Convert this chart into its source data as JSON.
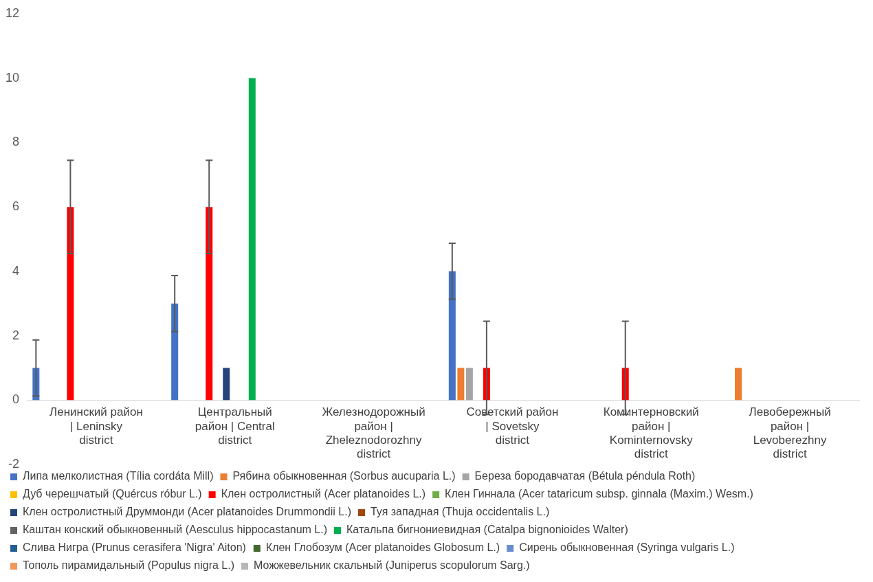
{
  "chart_data": {
    "type": "bar",
    "categories": [
      "Ленинский район | Leninsky district",
      "Центральный район | Central district",
      "Железнодорожный район | Zheleznodorozhny district",
      "Советский район | Sovetsky district",
      "Коминтерновский район | Kominternovsky district",
      "Левобережный район | Levoberezhny district"
    ],
    "series": [
      {
        "name": "Липа мелколистная (Tília cordáta Mill)",
        "color": "#4472c4",
        "values": [
          1,
          3,
          null,
          4,
          null,
          null
        ],
        "errors": [
          0.87,
          0.87,
          null,
          0.87,
          null,
          null
        ]
      },
      {
        "name": "Рябина обыкновенная (Sorbus aucuparia L.)",
        "color": "#ed7d31",
        "values": [
          null,
          null,
          null,
          1,
          null,
          1
        ]
      },
      {
        "name": "Береза бородавчатая (Bétula péndula Roth)",
        "color": "#a5a5a5",
        "values": [
          null,
          null,
          null,
          1,
          null,
          null
        ]
      },
      {
        "name": "Дуб черешчатый (Quércus róbur L.)",
        "color": "#ffc000",
        "values": [
          null,
          null,
          null,
          null,
          null,
          null
        ]
      },
      {
        "name": "Клен остролистный (Acer platanoides L.)",
        "color": "#ff0000",
        "values": [
          6,
          6,
          null,
          1,
          1,
          null
        ],
        "errors": [
          1.45,
          1.45,
          null,
          1.45,
          1.45,
          null
        ]
      },
      {
        "name": "Клен Гиннала (Acer tataricum subsp. ginnala (Maxim.) Wesm.)",
        "color": "#70ad47",
        "values": [
          null,
          null,
          null,
          null,
          null,
          null
        ]
      },
      {
        "name": "Клен остролистный Друммонди (Acer platanoides Drummondii L.)",
        "color": "#264478",
        "values": [
          null,
          1,
          null,
          null,
          null,
          null
        ]
      },
      {
        "name": "Туя западная (Thuja occidentalis L.)",
        "color": "#9e480e",
        "values": [
          null,
          null,
          null,
          null,
          null,
          null
        ]
      },
      {
        "name": "Каштан конский обыкновенный (Aesculus hippocastanum L.)",
        "color": "#636363",
        "values": [
          null,
          null,
          null,
          null,
          null,
          null
        ]
      },
      {
        "name": "Катальпа бигнониевидная (Catalpa bignonioides Walter)",
        "color": "#00b050",
        "values": [
          null,
          10,
          null,
          null,
          null,
          null
        ]
      },
      {
        "name": "Слива Нигра (Prunus cerasifera 'Nigra' Aiton)",
        "color": "#255e91",
        "values": [
          null,
          null,
          null,
          null,
          null,
          null
        ]
      },
      {
        "name": "Клен Глобозум (Acer platanoides Globosum L.)",
        "color": "#43682b",
        "values": [
          null,
          null,
          null,
          null,
          null,
          null
        ]
      },
      {
        "name": "Сирень обыкновенная (Syringa vulgaris L.)",
        "color": "#698ed0",
        "values": [
          null,
          null,
          null,
          null,
          null,
          null
        ]
      },
      {
        "name": "Тополь пирамидальный (Populus nigra L.)",
        "color": "#f1975a",
        "values": [
          null,
          null,
          null,
          null,
          null,
          null
        ]
      },
      {
        "name": "Можжевельник скальный (Juniperus scopulorum Sarg.)",
        "color": "#b7b7b7",
        "values": [
          null,
          null,
          null,
          null,
          null,
          null
        ]
      }
    ],
    "ylim": [
      -2,
      12
    ],
    "yticks": [
      -2,
      0,
      2,
      4,
      6,
      8,
      10,
      12
    ],
    "legend": "bottom"
  }
}
